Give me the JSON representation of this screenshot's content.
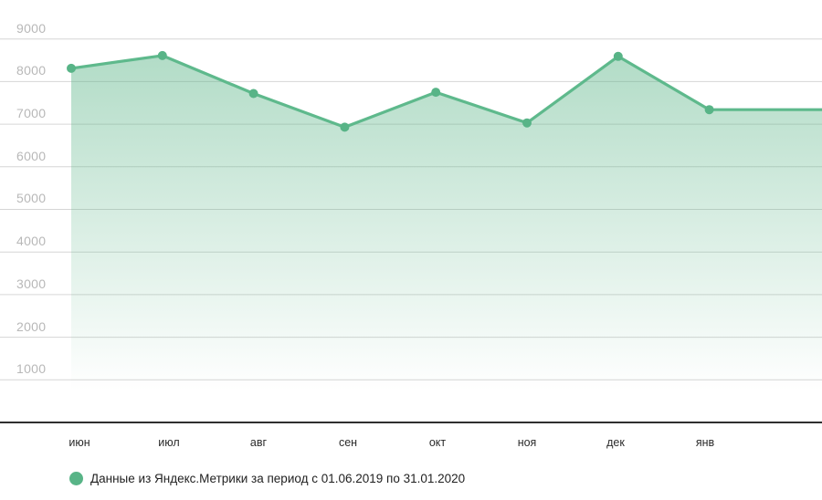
{
  "chart_data": {
    "type": "area",
    "title": "",
    "categories": [
      "июн",
      "июл",
      "авг",
      "сен",
      "окт",
      "ноя",
      "дек",
      "янв"
    ],
    "series": [
      {
        "name": "Данные из Яндекс.Метрики за период с 01.06.2019 по 31.01.2020",
        "values": [
          8310,
          8610,
          7720,
          6930,
          7750,
          7030,
          8590,
          7340
        ]
      }
    ],
    "line_continues_flat_to_right_edge": true,
    "trailing_value": 7340,
    "y_ticks": [
      1000,
      2000,
      3000,
      4000,
      5000,
      6000,
      7000,
      8000,
      9000
    ],
    "ylim": [
      0,
      9900
    ],
    "xlabel": "",
    "ylabel": "",
    "grid": "horizontal",
    "legend_position": "bottom-left",
    "colors": {
      "line": "#5eb98c",
      "dot": "#58b487",
      "fill": "#5cb588",
      "gridline": "#d6d6d6",
      "axis_line": "#2e2e2e",
      "y_label_text": "#b8b8b8",
      "x_label_text": "#2b2b2b",
      "legend_marker": "#58b487",
      "legend_text": "#1f1f1f"
    }
  }
}
